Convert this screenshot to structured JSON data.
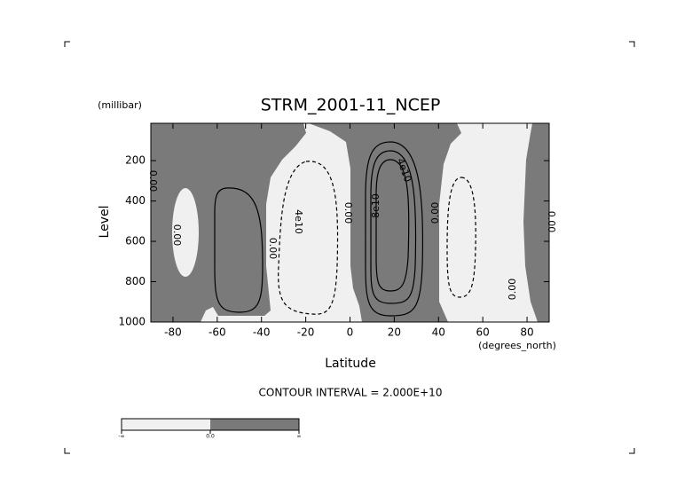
{
  "chart_data": {
    "type": "contour",
    "title": "STRM_2001-11_NCEP",
    "x_label": "Latitude",
    "x_units": "(degrees_north)",
    "y_label": "Level",
    "y_units": "(millibar)",
    "xlim": [
      -90,
      90
    ],
    "xticks": [
      -80,
      -60,
      -40,
      -20,
      0,
      20,
      40,
      60,
      80
    ],
    "ylim": [
      1000,
      15
    ],
    "yticks": [
      200,
      400,
      600,
      800,
      1000
    ],
    "colors": [
      "#f0f0f0",
      "#7a7a7a"
    ],
    "contour_note": "CONTOUR INTERVAL = 2.000E+10",
    "contour_labels": [
      "0.00",
      "0.00",
      "0.00",
      "4e10",
      "0.00",
      "8e10",
      "4e10",
      "0.00",
      "0.00",
      "0.00"
    ],
    "colorbar_labels": [
      "-∞",
      "0.0",
      "∞"
    ]
  }
}
